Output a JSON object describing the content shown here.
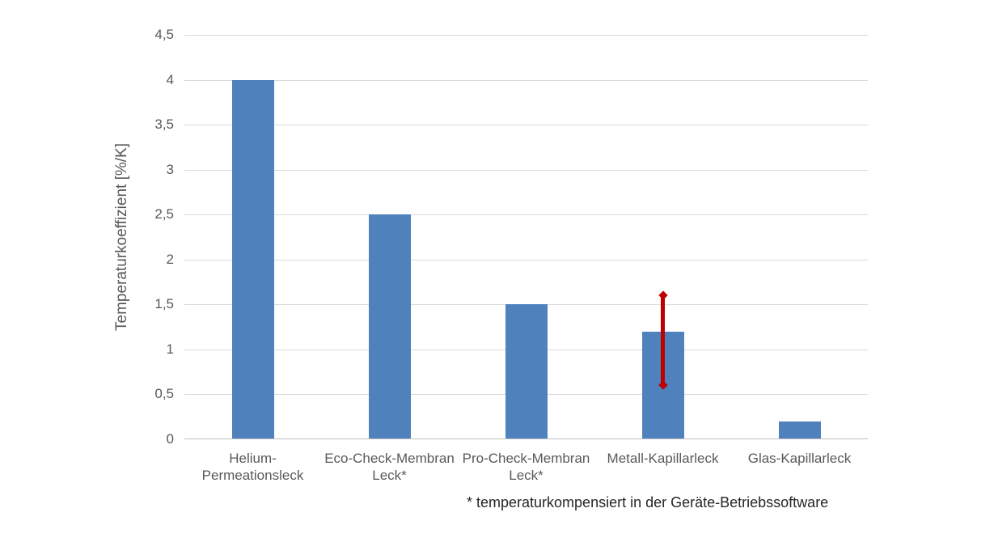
{
  "chart_data": {
    "type": "bar",
    "title": "",
    "xlabel": "",
    "ylabel": "Temperaturkoeffizient [%/K]",
    "categories": [
      "Helium-\nPermeationsleck",
      "Eco-Check-Membran\nLeck*",
      "Pro-Check-Membran\nLeck*",
      "Metall-Kapillarleck",
      "Glas-Kapillarleck"
    ],
    "values": [
      4.0,
      2.5,
      1.5,
      1.2,
      0.2
    ],
    "ylim": [
      0,
      4.5
    ],
    "ytick_step": 0.5,
    "ytick_labels": [
      "0",
      "0,5",
      "1",
      "1,5",
      "2",
      "2,5",
      "3",
      "3,5",
      "4",
      "4,5"
    ],
    "grid": true,
    "legend": "none",
    "error_bar": {
      "category_index": 3,
      "from": 0.6,
      "to": 1.6
    },
    "footnote": "* temperaturkompensiert in der Geräte-Betriebssoftware"
  },
  "colors": {
    "bar": "#4F81BD",
    "error_bar": "#C00000",
    "gridline": "#D9D9D9",
    "axis_line": "#BFBFBF",
    "axis_text": "#595959",
    "footnote_text": "#262626",
    "background": "#FFFFFF"
  }
}
